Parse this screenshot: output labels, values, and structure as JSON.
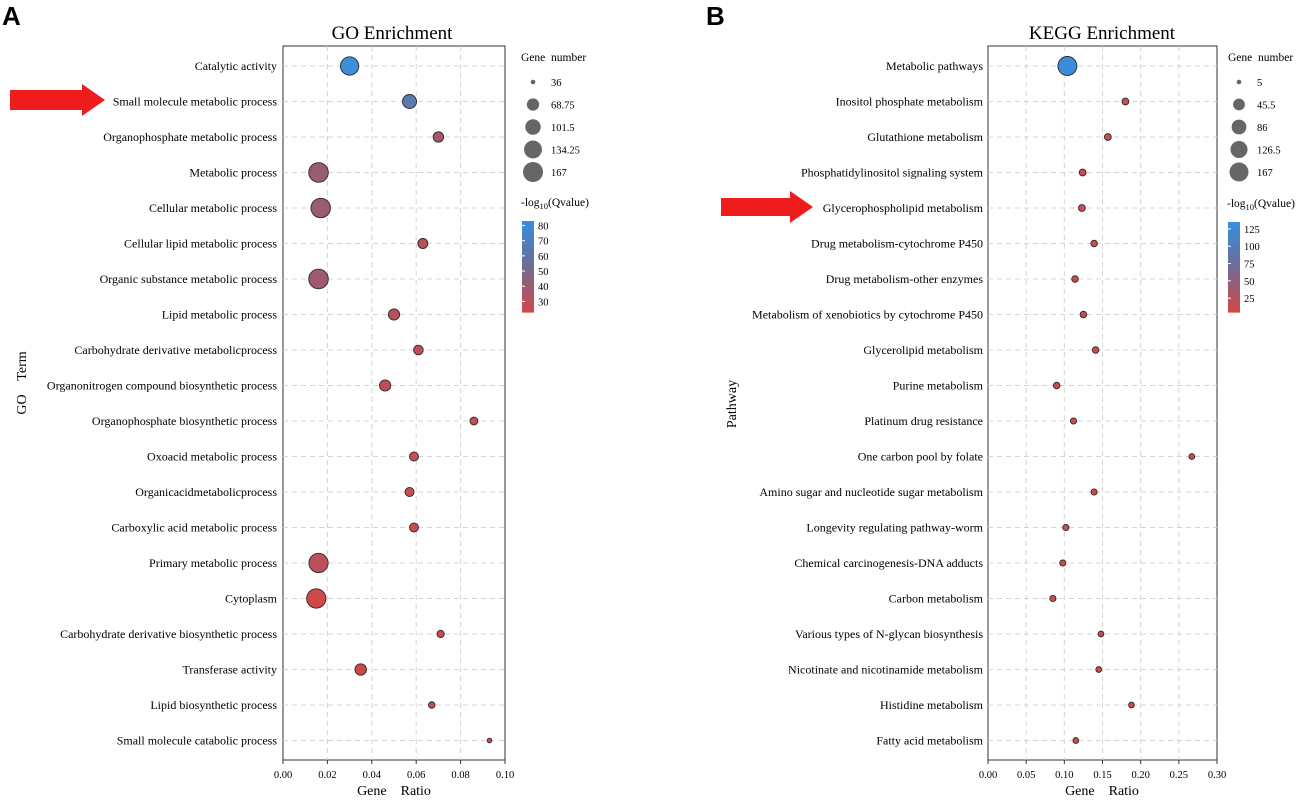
{
  "panels": [
    {
      "letter": "A",
      "arrow_color": "#ee1c1c",
      "arrow_term_index": 1,
      "chart_data": {
        "type": "scatter",
        "title": "GO Enrichment",
        "xlabel": "Gene    Ratio",
        "ylabel": "GO    Term",
        "xlim": [
          0.0,
          0.1
        ],
        "xticks": [
          0.0,
          0.02,
          0.04,
          0.06,
          0.08,
          0.1
        ],
        "xtick_labels": [
          "0.00",
          "0.02",
          "0.04",
          "0.06",
          "0.08",
          "0.10"
        ],
        "grid": true,
        "size_legend": {
          "title": "Gene  number",
          "values": [
            36,
            68.75,
            101.5,
            134.25,
            167
          ],
          "labels": [
            "36",
            "68.75",
            "101.5",
            "134.25",
            "167"
          ]
        },
        "color_legend": {
          "title_parts": [
            "-log",
            "10",
            "(Qvalue)"
          ],
          "ticks": [
            80,
            70,
            60,
            50,
            40,
            30
          ],
          "range": [
            23,
            83
          ],
          "low_color": "#d44848",
          "high_color": "#3a8fdc"
        },
        "points": [
          {
            "term": "Catalytic activity",
            "x": 0.03,
            "count": 140,
            "q": 82
          },
          {
            "term": "Small molecule metabolic process",
            "x": 0.057,
            "count": 85,
            "q": 64
          },
          {
            "term": "Organophosphate metabolic process",
            "x": 0.07,
            "count": 55,
            "q": 36
          },
          {
            "term": "Metabolic process",
            "x": 0.016,
            "count": 160,
            "q": 40
          },
          {
            "term": "Cellular metabolic process",
            "x": 0.017,
            "count": 158,
            "q": 39
          },
          {
            "term": "Cellular lipid metabolic process",
            "x": 0.063,
            "count": 52,
            "q": 30
          },
          {
            "term": "Organic substance metabolic process",
            "x": 0.016,
            "count": 160,
            "q": 38
          },
          {
            "term": "Lipid metabolic process",
            "x": 0.05,
            "count": 60,
            "q": 30
          },
          {
            "term": "Carbohydrate derivative metabolicprocess",
            "x": 0.061,
            "count": 50,
            "q": 28
          },
          {
            "term": "Organonitrogen compound biosynthetic process",
            "x": 0.046,
            "count": 60,
            "q": 28
          },
          {
            "term": "Organophosphate biosynthetic process",
            "x": 0.086,
            "count": 42,
            "q": 27
          },
          {
            "term": "Oxoacid metabolic process",
            "x": 0.059,
            "count": 47,
            "q": 27
          },
          {
            "term": "Organicacidmetabolicprocess",
            "x": 0.057,
            "count": 47,
            "q": 27
          },
          {
            "term": "Carboxylic acid metabolic process",
            "x": 0.059,
            "count": 47,
            "q": 26
          },
          {
            "term": "Primary metabolic process",
            "x": 0.016,
            "count": 155,
            "q": 30
          },
          {
            "term": "Cytoplasm",
            "x": 0.015,
            "count": 155,
            "q": 24
          },
          {
            "term": "Carbohydrate derivative biosynthetic process",
            "x": 0.071,
            "count": 40,
            "q": 25
          },
          {
            "term": "Transferase activity",
            "x": 0.035,
            "count": 62,
            "q": 24
          },
          {
            "term": "Lipid biosynthetic process",
            "x": 0.067,
            "count": 38,
            "q": 24
          },
          {
            "term": "Small molecule catabolic process",
            "x": 0.093,
            "count": 36,
            "q": 24
          }
        ]
      }
    },
    {
      "letter": "B",
      "arrow_color": "#ee1c1c",
      "arrow_term_index": 4,
      "chart_data": {
        "type": "scatter",
        "title": "KEGG Enrichment",
        "xlabel": "Gene    Ratio",
        "ylabel": "Pathway",
        "xlim": [
          0.0,
          0.3
        ],
        "xticks": [
          0.0,
          0.05,
          0.1,
          0.15,
          0.2,
          0.25,
          0.3
        ],
        "xtick_labels": [
          "0.00",
          "0.05",
          "0.10",
          "0.15",
          "0.20",
          "0.25",
          "0.30"
        ],
        "grid": true,
        "size_legend": {
          "title": "Gene  number",
          "values": [
            5,
            45.5,
            86,
            126.5,
            167
          ],
          "labels": [
            "5",
            "45.5",
            "86",
            "126.5",
            "167"
          ]
        },
        "color_legend": {
          "title_parts": [
            "-log",
            "10",
            "(Qvalue)"
          ],
          "ticks": [
            125,
            100,
            75,
            50,
            25
          ],
          "range": [
            5,
            135
          ],
          "low_color": "#d44848",
          "high_color": "#3a8fdc"
        },
        "points": [
          {
            "term": "Metabolic pathways",
            "x": 0.104,
            "count": 167,
            "q": 132
          },
          {
            "term": "Inositol phosphate metabolism",
            "x": 0.18,
            "count": 9,
            "q": 10
          },
          {
            "term": "Glutathione metabolism",
            "x": 0.157,
            "count": 9,
            "q": 10
          },
          {
            "term": "Phosphatidylinositol signaling system",
            "x": 0.124,
            "count": 9,
            "q": 10
          },
          {
            "term": "Glycerophospholipid metabolism",
            "x": 0.123,
            "count": 9,
            "q": 10
          },
          {
            "term": "Drug metabolism-cytochrome P450",
            "x": 0.139,
            "count": 8,
            "q": 9
          },
          {
            "term": "Drug metabolism-other enzymes",
            "x": 0.114,
            "count": 8,
            "q": 9
          },
          {
            "term": "Metabolism of xenobiotics by cytochrome P450",
            "x": 0.125,
            "count": 8,
            "q": 9
          },
          {
            "term": "Glycerolipid metabolism",
            "x": 0.141,
            "count": 8,
            "q": 9
          },
          {
            "term": "Purine metabolism",
            "x": 0.09,
            "count": 8,
            "q": 9
          },
          {
            "term": "Platinum drug resistance",
            "x": 0.112,
            "count": 7,
            "q": 8
          },
          {
            "term": "One carbon pool by folate",
            "x": 0.267,
            "count": 6,
            "q": 8
          },
          {
            "term": "Amino sugar and nucleotide sugar metabolism",
            "x": 0.139,
            "count": 7,
            "q": 8
          },
          {
            "term": "Longevity regulating pathway-worm",
            "x": 0.102,
            "count": 7,
            "q": 8
          },
          {
            "term": "Chemical carcinogenesis-DNA adducts",
            "x": 0.098,
            "count": 7,
            "q": 8
          },
          {
            "term": "Carbon metabolism",
            "x": 0.085,
            "count": 7,
            "q": 8
          },
          {
            "term": "Various types of N-glycan biosynthesis",
            "x": 0.148,
            "count": 6,
            "q": 7
          },
          {
            "term": "Nicotinate and nicotinamide metabolism",
            "x": 0.145,
            "count": 6,
            "q": 7
          },
          {
            "term": "Histidine metabolism",
            "x": 0.188,
            "count": 6,
            "q": 7
          },
          {
            "term": "Fatty acid metabolism",
            "x": 0.115,
            "count": 6,
            "q": 7
          }
        ]
      }
    }
  ]
}
